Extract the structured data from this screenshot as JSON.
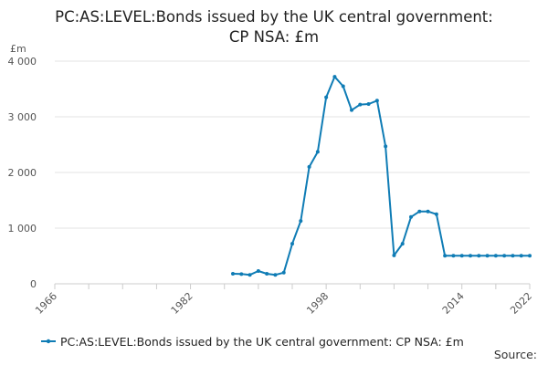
{
  "chart_data": {
    "type": "line",
    "title_line1": "PC:AS:LEVEL:Bonds issued by the UK central government:",
    "title_line2": "CP NSA: £m",
    "ylabel": "£m",
    "xlim": [
      1966,
      2022
    ],
    "ylim": [
      0,
      4000
    ],
    "x_ticks": [
      1966,
      1982,
      1998,
      2014,
      2022
    ],
    "x_tick_labels": [
      "1966",
      "1982",
      "1998",
      "2014",
      "2022"
    ],
    "x_minor_ticks": [
      1966,
      1970,
      1974,
      1978,
      1982,
      1986,
      1990,
      1994,
      1998,
      2002,
      2006,
      2010,
      2014,
      2018,
      2022
    ],
    "y_ticks": [
      0,
      1000,
      2000,
      3000,
      4000
    ],
    "y_tick_labels": [
      "0",
      "1 000",
      "2 000",
      "3 000",
      "4 000"
    ],
    "grid": true,
    "legend_position": "bottom-left",
    "series": [
      {
        "name": "PC:AS:LEVEL:Bonds issued by the UK central government: CP NSA: £m",
        "color": "#0f7cb5",
        "x": [
          1987,
          1988,
          1989,
          1990,
          1991,
          1992,
          1993,
          1994,
          1995,
          1996,
          1997,
          1998,
          1999,
          2000,
          2001,
          2002,
          2003,
          2004,
          2005,
          2006,
          2007,
          2008,
          2009,
          2010,
          2011,
          2012,
          2013,
          2014,
          2015,
          2016,
          2017,
          2018,
          2019,
          2020,
          2021,
          2022
        ],
        "values": [
          180,
          175,
          160,
          230,
          180,
          160,
          200,
          720,
          1130,
          2100,
          2370,
          3350,
          3720,
          3550,
          3120,
          3220,
          3230,
          3290,
          2470,
          510,
          720,
          1200,
          1300,
          1300,
          1250,
          505,
          505,
          505,
          505,
          505,
          505,
          505,
          505,
          505,
          505,
          505
        ]
      }
    ]
  },
  "legend": {
    "label": "PC:AS:LEVEL:Bonds issued by the UK central government: CP NSA: £m"
  },
  "source": {
    "label": "Source:"
  }
}
